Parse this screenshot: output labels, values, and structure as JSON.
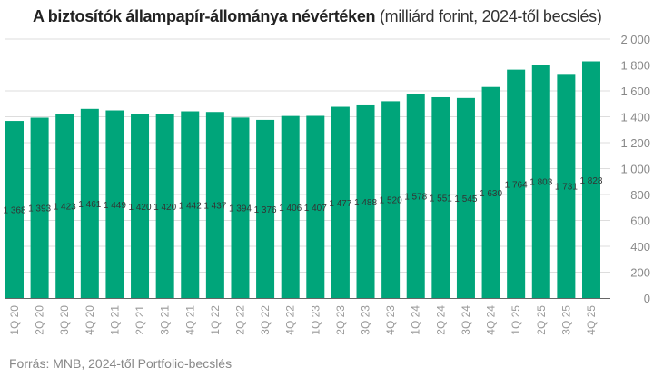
{
  "chart_data": {
    "type": "bar",
    "title": "A biztosítók állampapír-állománya névértéken",
    "subtitle": "(milliárd forint, 2024-től becslés)",
    "xlabel": "",
    "ylabel": "",
    "ylim": [
      0,
      2000
    ],
    "yticks": [
      0,
      200,
      400,
      600,
      800,
      1000,
      1200,
      1400,
      1600,
      1800,
      2000
    ],
    "ytick_labels": [
      "0",
      "200",
      "400",
      "600",
      "800",
      "1 000",
      "1 200",
      "1 400",
      "1 600",
      "1 800",
      "2 000"
    ],
    "grid": true,
    "categories": [
      "1Q 20",
      "2Q 20",
      "3Q 20",
      "4Q 20",
      "1Q 21",
      "2Q 21",
      "3Q 21",
      "4Q 21",
      "1Q 22",
      "2Q 22",
      "3Q 22",
      "4Q 22",
      "1Q 23",
      "2Q 23",
      "3Q 23",
      "4Q 23",
      "1Q 24",
      "2Q 24",
      "3Q 24",
      "4Q 24",
      "1Q 25",
      "2Q 25",
      "3Q 25",
      "4Q 25"
    ],
    "values": [
      1368,
      1393,
      1423,
      1461,
      1449,
      1420,
      1420,
      1442,
      1437,
      1394,
      1376,
      1406,
      1407,
      1477,
      1488,
      1520,
      1578,
      1551,
      1545,
      1630,
      1764,
      1803,
      1731,
      1828
    ],
    "value_labels": [
      "1 368",
      "1 393",
      "1 423",
      "1 461",
      "1 449",
      "1 420",
      "1 420",
      "1 442",
      "1 437",
      "1 394",
      "1 376",
      "1 406",
      "1 407",
      "1 477",
      "1 488",
      "1 520",
      "1 578",
      "1 551",
      "1 545",
      "1 630",
      "1 764",
      "1 803",
      "1 731",
      "1 828"
    ],
    "bar_color": "#00a57a",
    "grid_color": "#dddddd",
    "axis_position": "right"
  },
  "source": "Forrás: MNB, 2024-től Portfolio-becslés"
}
